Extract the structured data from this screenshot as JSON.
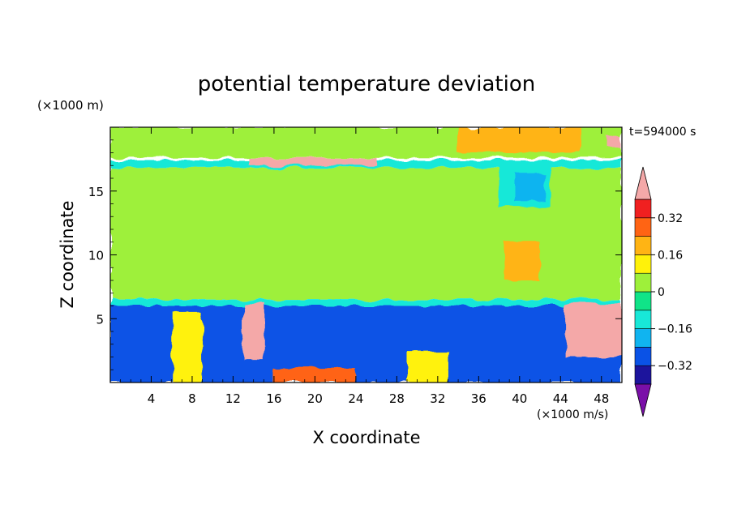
{
  "chart_data": {
    "type": "heatmap",
    "title": "potential temperature deviation",
    "xlabel": "X coordinate",
    "ylabel": "Z coordinate",
    "x_unit": "(×1000 m/s)",
    "y_unit": "(×1000 m)",
    "time_label": "t=594000 s",
    "x_ticks": [
      4,
      8,
      12,
      16,
      20,
      24,
      28,
      32,
      36,
      40,
      44,
      48
    ],
    "y_ticks": [
      5,
      10,
      15
    ],
    "xlim": [
      0,
      50
    ],
    "ylim": [
      0,
      20
    ],
    "colorbar": {
      "tick_labels": [
        "0.32",
        "0.16",
        "0",
        "−0.16",
        "−0.32"
      ],
      "tick_values": [
        0.32,
        0.16,
        0,
        -0.16,
        -0.32
      ],
      "levels": [
        -0.4,
        -0.32,
        -0.24,
        -0.16,
        -0.08,
        0,
        0.08,
        0.16,
        0.24,
        0.32,
        0.4
      ],
      "colors": [
        "#7a0fa8",
        "#1c149c",
        "#0a52e6",
        "#10b4f0",
        "#18e8d8",
        "#10e488",
        "#9ef03a",
        "#fff20a",
        "#ffb414",
        "#ff6414",
        "#f02020",
        "#f4a8a8"
      ]
    },
    "regions": [
      {
        "x": [
          0,
          50
        ],
        "z": [
          17.6,
          20
        ],
        "value": 0.06
      },
      {
        "x": [
          0,
          50
        ],
        "z": [
          16.8,
          17.4
        ],
        "value": -0.12
      },
      {
        "x": [
          0,
          50
        ],
        "z": [
          6.5,
          16.8
        ],
        "value": 0.06
      },
      {
        "x": [
          0,
          50
        ],
        "z": [
          6.0,
          6.5
        ],
        "value": -0.1
      },
      {
        "x": [
          0,
          50
        ],
        "z": [
          0,
          6.0
        ],
        "value": -0.3
      },
      {
        "x": [
          34,
          46
        ],
        "z": [
          18.0,
          20
        ],
        "value": 0.17
      },
      {
        "x": [
          38,
          43
        ],
        "z": [
          13.8,
          17.2
        ],
        "value": -0.14
      },
      {
        "x": [
          39.5,
          42.5
        ],
        "z": [
          14.2,
          16.4
        ],
        "value": -0.2
      },
      {
        "x": [
          38.5,
          42
        ],
        "z": [
          8.0,
          11.0
        ],
        "value": 0.18
      },
      {
        "x": [
          13,
          15
        ],
        "z": [
          1.8,
          6.2
        ],
        "value": 0.4
      },
      {
        "x": [
          44.5,
          50
        ],
        "z": [
          2.0,
          6.2
        ],
        "value": 0.4
      },
      {
        "x": [
          13.5,
          26
        ],
        "z": [
          17.0,
          17.6
        ],
        "value": 0.4
      },
      {
        "x": [
          6,
          9
        ],
        "z": [
          0,
          5.5
        ],
        "value": 0.15
      },
      {
        "x": [
          29,
          33
        ],
        "z": [
          0,
          2.5
        ],
        "value": 0.12
      },
      {
        "x": [
          16,
          24
        ],
        "z": [
          0,
          1.2
        ],
        "value": 0.3
      },
      {
        "x": [
          48.5,
          50
        ],
        "z": [
          18.5,
          19.2
        ],
        "value": 0.4
      }
    ]
  }
}
